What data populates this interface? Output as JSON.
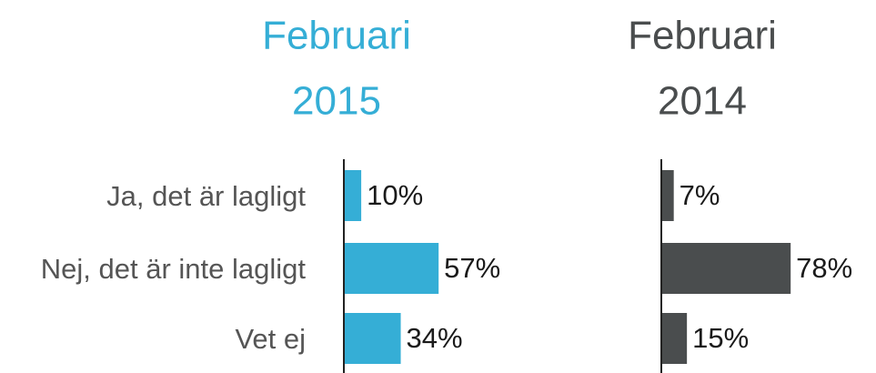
{
  "chart_data": [
    {
      "type": "bar",
      "orientation": "horizontal",
      "title": [
        "Februari",
        "2015"
      ],
      "color": "#35aed6",
      "categories": [
        "Ja, det är lagligt",
        "Nej, det är inte lagligt",
        "Vet ej"
      ],
      "values": [
        10,
        57,
        34
      ],
      "value_labels": [
        "10%",
        "57%",
        "34%"
      ]
    },
    {
      "type": "bar",
      "orientation": "horizontal",
      "title": [
        "Februari",
        "2014"
      ],
      "color": "#4a4d4e",
      "values": [
        7,
        78,
        15
      ],
      "value_labels": [
        "7%",
        "78%",
        "15%"
      ]
    }
  ]
}
